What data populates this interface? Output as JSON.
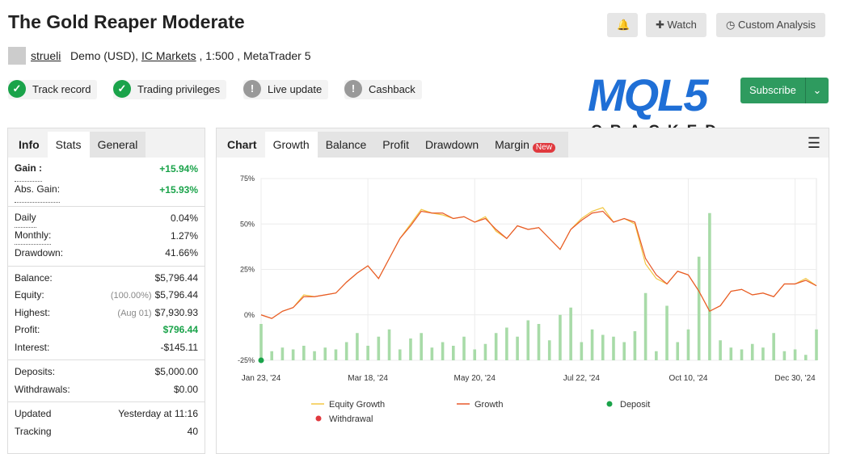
{
  "header": {
    "title": "The Gold Reaper Moderate",
    "user": "strueli",
    "account": "Demo (USD),",
    "broker": "IC Markets",
    "leverage": ", 1:500 , MetaTrader 5",
    "buttons": [
      "Watch",
      "Custom Analysis"
    ]
  },
  "badges": [
    "Track record",
    "Trading privileges",
    "Live update",
    "Cashback"
  ],
  "logo": {
    "main": "MQL5",
    "sub": "CRACKED"
  },
  "subscribe": "Subscribe",
  "stats": {
    "tabs": [
      "Info",
      "Stats",
      "General"
    ],
    "groups": [
      [
        {
          "label": "Gain :",
          "value": "+15.94%",
          "color": "#1aa34a"
        },
        {
          "label": "Abs. Gain:",
          "value": "+15.93%",
          "color": "#1aa34a"
        }
      ],
      [
        {
          "label": "Daily",
          "value": "0.04%"
        },
        {
          "label": "Monthly:",
          "value": "1.27%"
        },
        {
          "label": "Drawdown:",
          "value": "41.66%"
        }
      ],
      [
        {
          "label": "Balance:",
          "value": "$5,796.44"
        },
        {
          "label": "Equity:",
          "note": "(100.00%)",
          "value": "$5,796.44"
        },
        {
          "label": "Highest:",
          "note": "(Aug 01)",
          "value": "$7,930.93"
        },
        {
          "label": "Profit:",
          "value": "$796.44",
          "color": "#1aa34a"
        },
        {
          "label": "Interest:",
          "value": "-$145.11"
        }
      ],
      [
        {
          "label": "Deposits:",
          "value": "$5,000.00"
        },
        {
          "label": "Withdrawals:",
          "value": "$0.00"
        }
      ],
      [
        {
          "label": "Updated",
          "value": "Yesterday at 11:16"
        },
        {
          "label": "Tracking",
          "value": "40"
        }
      ]
    ]
  },
  "chart_tabs": {
    "items": [
      "Chart",
      "Growth",
      "Balance",
      "Profit",
      "Drawdown",
      "Margin"
    ],
    "new_badge": "New"
  },
  "chart_data": {
    "type": "line",
    "grid": true,
    "categories": [
      "Jan 23, '24",
      null,
      null,
      null,
      null,
      null,
      null,
      null,
      null,
      null,
      "Mar 18, '24",
      null,
      null,
      null,
      null,
      null,
      null,
      null,
      null,
      null,
      "May 20, '24",
      null,
      null,
      null,
      null,
      null,
      null,
      null,
      null,
      null,
      "Jul 22, '24",
      null,
      null,
      null,
      null,
      null,
      null,
      null,
      null,
      null,
      "Oct 10, '24",
      null,
      null,
      null,
      null,
      null,
      null,
      null,
      null,
      null,
      "Dec 30, '24",
      null,
      null
    ],
    "ylim": [
      -25,
      75
    ],
    "yticks": [
      {
        "value": -25,
        "label": "-25%"
      },
      {
        "value": 0,
        "label": "0%"
      },
      {
        "value": 25,
        "label": "25%"
      },
      {
        "value": 50,
        "label": "50%"
      },
      {
        "value": 75,
        "label": "75%"
      }
    ],
    "series": [
      {
        "name": "Equity Growth",
        "color": "#f2c744",
        "values": [
          0,
          -2,
          2,
          4,
          11,
          10,
          11,
          12,
          18,
          23,
          27,
          20,
          31,
          42,
          50,
          58,
          56,
          55,
          53,
          54,
          51,
          54,
          46,
          42,
          49,
          47,
          48,
          42,
          36,
          47,
          53,
          57,
          59,
          51,
          53,
          50,
          28,
          20,
          17,
          24,
          22,
          13,
          2,
          5,
          13,
          14,
          11,
          12,
          10,
          17,
          17,
          20,
          16
        ]
      },
      {
        "name": "Growth",
        "color": "#e8582a",
        "values": [
          0,
          -2,
          2,
          4,
          10,
          10,
          11,
          12,
          18,
          23,
          27,
          20,
          31,
          42,
          49,
          57,
          56,
          56,
          53,
          54,
          51,
          53,
          47,
          42,
          49,
          47,
          48,
          42,
          36,
          47,
          52,
          56,
          57,
          51,
          53,
          51,
          31,
          22,
          17,
          24,
          22,
          13,
          2,
          5,
          13,
          14,
          11,
          12,
          10,
          17,
          17,
          19,
          16
        ]
      }
    ],
    "activity": {
      "color": "#a8dba8",
      "values": [
        -5,
        -20,
        -18,
        -19,
        -17,
        -20,
        -18,
        -19,
        -15,
        -10,
        -17,
        -12,
        -8,
        -19,
        -13,
        -10,
        -18,
        -15,
        -17,
        -12,
        -19,
        -16,
        -10,
        -7,
        -12,
        -3,
        -5,
        -14,
        0,
        4,
        -15,
        -8,
        -11,
        -12,
        -15,
        -9,
        12,
        -20,
        5,
        -15,
        -8,
        32,
        56,
        -14,
        -18,
        -19,
        -16,
        -18,
        -10,
        -20,
        -19,
        -22,
        -8
      ]
    },
    "markers": [
      {
        "name": "Deposit",
        "color": "#1aa34a"
      },
      {
        "name": "Withdrawal",
        "color": "#e0393e"
      }
    ]
  }
}
